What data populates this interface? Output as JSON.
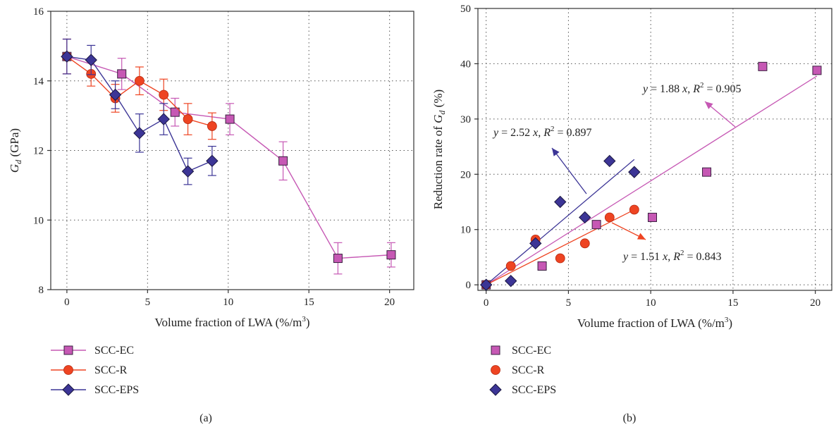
{
  "chart_data": [
    {
      "panel": "(a)",
      "type": "line",
      "xlabel": "Volume fraction of LWA (%/m³)",
      "ylabel_symbol": "G",
      "ylabel_sub": "d",
      "ylabel_unit": " (GPa)",
      "xlim": [
        -1,
        21.5
      ],
      "ylim": [
        8,
        16
      ],
      "xticks": [
        "0",
        "5",
        "10",
        "15",
        "20"
      ],
      "xtick_values": [
        0,
        5,
        10,
        15,
        20
      ],
      "yticks": [
        "8",
        "10",
        "12",
        "14",
        "16"
      ],
      "ytick_values": [
        8,
        10,
        12,
        14,
        16
      ],
      "grid": "dotted",
      "legend_placement": "below",
      "series": [
        {
          "name": "SCC-EC",
          "color": "#c658b4",
          "marker": "square",
          "x": [
            0,
            3.4,
            6.7,
            10.1,
            13.4,
            16.8,
            20.1
          ],
          "y": [
            14.7,
            14.2,
            13.1,
            12.9,
            11.7,
            8.9,
            9.0
          ],
          "err": [
            0.5,
            0.45,
            0.4,
            0.45,
            0.55,
            0.45,
            0.35
          ]
        },
        {
          "name": "SCC-R",
          "color": "#ee4422",
          "marker": "circle",
          "x": [
            0,
            1.5,
            3,
            4.5,
            6,
            7.5,
            9
          ],
          "y": [
            14.7,
            14.2,
            13.5,
            14.0,
            13.6,
            12.9,
            12.7
          ],
          "err": [
            0.5,
            0.35,
            0.4,
            0.4,
            0.45,
            0.45,
            0.38
          ]
        },
        {
          "name": "SCC-EPS",
          "color": "#3c3596",
          "marker": "diamond",
          "x": [
            0,
            1.5,
            3,
            4.5,
            6,
            7.5,
            9
          ],
          "y": [
            14.7,
            14.6,
            13.6,
            12.5,
            12.9,
            11.4,
            11.7
          ],
          "err": [
            0.5,
            0.42,
            0.4,
            0.55,
            0.45,
            0.38,
            0.42
          ]
        }
      ]
    },
    {
      "panel": "(b)",
      "type": "scatter",
      "xlabel": "Volume fraction of LWA (%/m³)",
      "ylabel_prefix": "Reduction rate of ",
      "ylabel_symbol": "G",
      "ylabel_sub": "d",
      "ylabel_unit": " (%)",
      "xlim": [
        -0.5,
        21
      ],
      "ylim": [
        -1,
        50
      ],
      "xticks": [
        "0",
        "5",
        "10",
        "15",
        "20"
      ],
      "xtick_values": [
        0,
        5,
        10,
        15,
        20
      ],
      "yticks": [
        "0",
        "10",
        "20",
        "30",
        "40",
        "50"
      ],
      "ytick_values": [
        0,
        10,
        20,
        30,
        40,
        50
      ],
      "grid": "dotted",
      "legend_placement": "below",
      "series": [
        {
          "name": "SCC-EC",
          "color": "#c658b4",
          "marker": "square",
          "x": [
            0,
            3.4,
            6.7,
            10.1,
            13.4,
            16.8,
            20.1
          ],
          "y": [
            0,
            3.4,
            10.9,
            12.2,
            20.4,
            39.5,
            38.8
          ],
          "fit": {
            "slope": 1.88,
            "x_range": [
              0,
              20.1
            ],
            "equation_y": "y",
            "equation_mid": " = 1.88",
            "equation_x": "x",
            "equation_r": ", ",
            "equation_R": "R",
            "equation_sup": "2",
            "equation_end": " = 0.905"
          }
        },
        {
          "name": "SCC-R",
          "color": "#ee4422",
          "marker": "circle",
          "x": [
            0,
            1.5,
            3,
            4.5,
            6,
            7.5,
            9
          ],
          "y": [
            0,
            3.4,
            8.2,
            4.8,
            7.5,
            12.2,
            13.6
          ],
          "fit": {
            "slope": 1.51,
            "x_range": [
              0,
              9
            ],
            "equation_y": "y",
            "equation_mid": " = 1.51",
            "equation_x": "x",
            "equation_r": ", ",
            "equation_R": "R",
            "equation_sup": "2",
            "equation_end": " = 0.843"
          }
        },
        {
          "name": "SCC-EPS",
          "color": "#3c3596",
          "marker": "diamond",
          "x": [
            0,
            1.5,
            3,
            4.5,
            6,
            7.5,
            9
          ],
          "y": [
            0,
            0.7,
            7.5,
            15.0,
            12.2,
            22.4,
            20.4
          ],
          "fit": {
            "slope": 2.52,
            "x_range": [
              0,
              9
            ],
            "equation_y": "y",
            "equation_mid": " = 2.52",
            "equation_x": "x",
            "equation_r": ", ",
            "equation_R": "R",
            "equation_sup": "2",
            "equation_end": " = 0.897"
          }
        }
      ]
    }
  ]
}
